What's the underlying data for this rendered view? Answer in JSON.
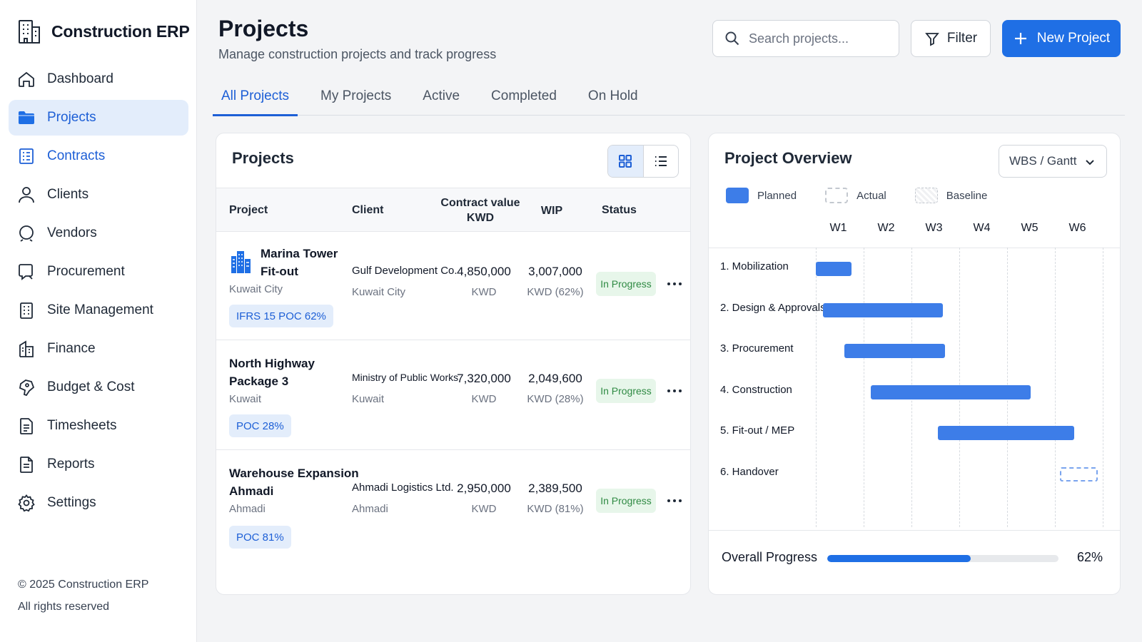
{
  "app": {
    "title": "Construction ERP"
  },
  "sidebar": {
    "items": [
      {
        "label": "Dashboard",
        "icon": "home-icon"
      },
      {
        "label": "Projects",
        "icon": "folder-icon",
        "active": true
      },
      {
        "label": "Contracts",
        "icon": "contract-icon"
      },
      {
        "label": "Clients",
        "icon": "user-icon"
      },
      {
        "label": "Vendors",
        "icon": "vendor-icon"
      },
      {
        "label": "Procurement",
        "icon": "procurement-icon"
      },
      {
        "label": "Site Management",
        "icon": "site-icon"
      },
      {
        "label": "Finance",
        "icon": "finance-icon"
      },
      {
        "label": "Budget & Cost",
        "icon": "budget-icon"
      },
      {
        "label": "Timesheets",
        "icon": "timesheet-icon"
      },
      {
        "label": "Reports",
        "icon": "report-icon"
      },
      {
        "label": "Settings",
        "icon": "gear-icon"
      }
    ],
    "footer": {
      "copyright": "© 2025 Construction ERP",
      "rights": "All rights reserved"
    }
  },
  "header": {
    "title": "Projects",
    "subtitle": "Manage construction projects and track progress",
    "search_placeholder": "Search projects...",
    "filter_label": "Filter",
    "new_label": "New Project"
  },
  "tabs": [
    {
      "label": "All Projects",
      "active": true
    },
    {
      "label": "My Projects"
    },
    {
      "label": "Active"
    },
    {
      "label": "Completed"
    },
    {
      "label": "On Hold"
    }
  ],
  "projects_card": {
    "title": "Projects",
    "columns": {
      "project": "Project",
      "client": "Client",
      "contract_value_1": "Contract value",
      "contract_value_2": "KWD",
      "wip": "WIP",
      "status": "Status"
    },
    "rows": [
      {
        "name_1": "Marina Tower",
        "name_2": "Fit-out",
        "city": "Kuwait City",
        "poc": "IFRS 15 POC 62%",
        "client": "Gulf Development Co.",
        "client_city": "Kuwait City",
        "value": "4,850,000",
        "value_unit": "KWD",
        "wip": "3,007,000",
        "wip_unit": "KWD (62%)",
        "status": "In Progress",
        "has_icon": true
      },
      {
        "name_1": "North Highway",
        "name_2": "Package 3",
        "city": "Kuwait",
        "poc": "POC 28%",
        "client": "Ministry of Public Works",
        "client_city": "Kuwait",
        "value": "7,320,000",
        "value_unit": "KWD",
        "wip": "2,049,600",
        "wip_unit": "KWD (28%)",
        "status": "In Progress"
      },
      {
        "name_1": "Warehouse Expansion",
        "name_2": "Ahmadi",
        "city": "Ahmadi",
        "poc": "POC 81%",
        "client": "Ahmadi Logistics Ltd.",
        "client_city": "Ahmadi",
        "value": "2,950,000",
        "value_unit": "KWD",
        "wip": "2,389,500",
        "wip_unit": "KWD (81%)",
        "status": "In Progress"
      }
    ]
  },
  "overview": {
    "title": "Project Overview",
    "view_select": "WBS / Gantt",
    "legend": {
      "planned": "Planned",
      "actual": "Actual",
      "baseline": "Baseline"
    },
    "weeks": [
      "W1",
      "W2",
      "W3",
      "W4",
      "W5",
      "W6"
    ],
    "tasks": [
      {
        "label": "1. Mobilization",
        "start": 0.0,
        "end": 0.75
      },
      {
        "label": "2. Design & Approvals",
        "start": 0.15,
        "end": 2.65
      },
      {
        "label": "3. Procurement",
        "start": 0.6,
        "end": 2.7
      },
      {
        "label": "4. Construction",
        "start": 1.15,
        "end": 4.5
      },
      {
        "label": "5. Fit-out / MEP",
        "start": 2.55,
        "end": 5.4
      },
      {
        "label": "6. Handover",
        "start": 5.1,
        "end": 5.9,
        "planned_only": true
      }
    ],
    "progress_label": "Overall Progress",
    "progress_value": 62,
    "progress_text": "62%"
  },
  "colors": {
    "accent": "#1f6fe5",
    "bar": "#3d7de8",
    "status_bg": "#e7f6ea",
    "status_fg": "#2f8a43"
  }
}
